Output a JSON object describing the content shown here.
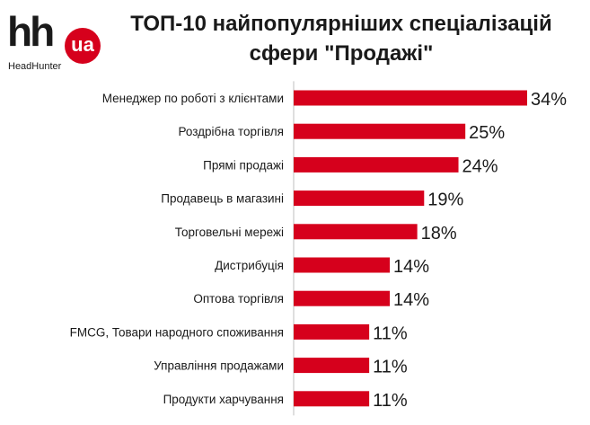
{
  "logo": {
    "hh_text": "hh",
    "ua_text": "ua",
    "subtitle": "HeadHunter"
  },
  "title_lines": [
    "ТОП-10 найпопулярніших спеціалізацій",
    "сфери \"Продажі\""
  ],
  "colors": {
    "bar": "#d6001c",
    "axis": "#bfbfbf",
    "text": "#1a1a1a"
  },
  "chart_data": {
    "type": "bar",
    "orientation": "horizontal",
    "title": "ТОП-10 найпопулярніших спеціалізацій сфери \"Продажі\"",
    "categories": [
      "Менеджер по роботі з клієнтами",
      "Роздрібна торгівля",
      "Прямі продажі",
      "Продавець в магазині",
      "Торговельні мережі",
      "Дистрибуція",
      "Оптова торгівля",
      "FMCG, Товари народного споживання",
      "Управління продажами",
      "Продукти харчування"
    ],
    "values": [
      34,
      25,
      24,
      19,
      18,
      14,
      14,
      11,
      11,
      11
    ],
    "data_labels": [
      "34%",
      "25%",
      "24%",
      "19%",
      "18%",
      "14%",
      "14%",
      "11%",
      "11%",
      "11%"
    ],
    "xlim": [
      0,
      34
    ],
    "grid": false,
    "legend": "none"
  }
}
